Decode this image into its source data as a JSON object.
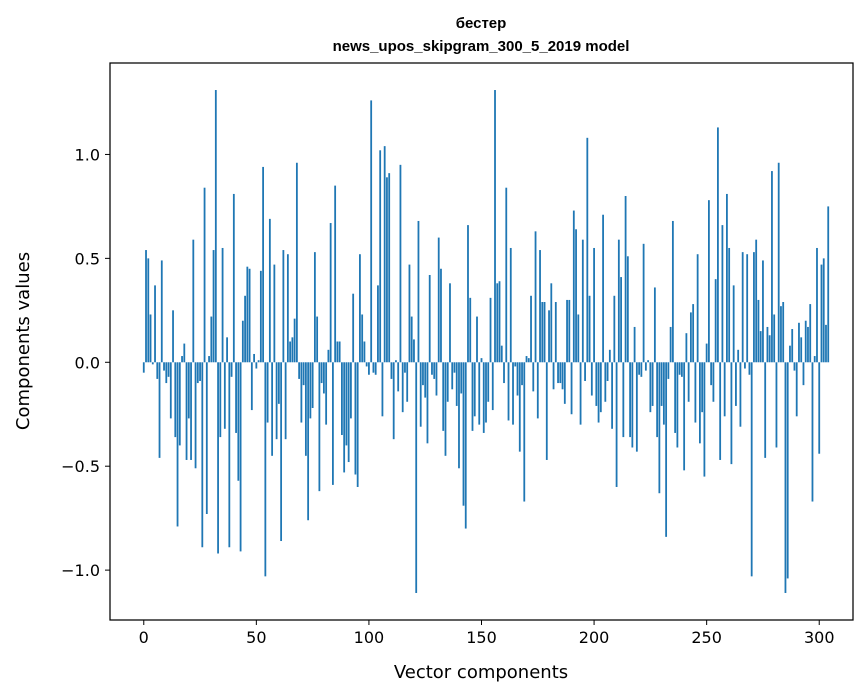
{
  "chart_data": {
    "type": "bar",
    "title": "бестер",
    "subtitle": "news_upos_skipgram_300_5_2019 model",
    "xlabel": "Vector components",
    "ylabel": "Components values",
    "xlim": [
      -15,
      315
    ],
    "ylim": [
      -1.24,
      1.44
    ],
    "xticks": [
      0,
      50,
      100,
      150,
      200,
      250,
      300
    ],
    "xtick_labels": [
      "0",
      "50",
      "100",
      "150",
      "200",
      "250",
      "300"
    ],
    "yticks": [
      -1.0,
      -0.5,
      0.0,
      0.5,
      1.0
    ],
    "ytick_labels": [
      "−1.0",
      "−0.5",
      "0.0",
      "0.5",
      "1.0"
    ],
    "grid": false,
    "bar_color": "#1f77b4",
    "values": [
      -0.05,
      0.54,
      0.5,
      0.23,
      -0.01,
      0.37,
      -0.08,
      -0.46,
      0.49,
      -0.04,
      -0.1,
      -0.07,
      -0.27,
      0.25,
      -0.36,
      -0.79,
      -0.4,
      0.03,
      0.09,
      -0.47,
      -0.27,
      -0.47,
      0.59,
      -0.51,
      -0.1,
      -0.09,
      -0.89,
      0.84,
      -0.73,
      0.03,
      0.22,
      0.54,
      1.31,
      -0.92,
      -0.36,
      0.55,
      -0.32,
      0.12,
      -0.89,
      -0.07,
      0.81,
      -0.34,
      -0.57,
      -0.91,
      0.2,
      0.32,
      0.46,
      0.45,
      -0.23,
      0.04,
      -0.03,
      0.01,
      0.44,
      0.94,
      -1.03,
      -0.29,
      0.69,
      -0.45,
      0.47,
      -0.37,
      -0.2,
      -0.86,
      0.54,
      -0.37,
      0.52,
      0.1,
      0.12,
      0.21,
      0.96,
      -0.08,
      -0.29,
      -0.11,
      -0.45,
      -0.76,
      -0.27,
      -0.22,
      0.53,
      0.22,
      -0.62,
      -0.1,
      -0.15,
      -0.3,
      0.06,
      0.67,
      -0.59,
      0.85,
      0.1,
      0.1,
      -0.35,
      -0.53,
      -0.4,
      -0.48,
      -0.27,
      0.33,
      -0.54,
      -0.6,
      0.52,
      0.23,
      0.1,
      -0.02,
      -0.06,
      1.26,
      -0.05,
      -0.06,
      0.37,
      1.02,
      -0.26,
      1.04,
      0.89,
      0.91,
      -0.08,
      -0.37,
      0.01,
      -0.14,
      0.95,
      -0.24,
      -0.05,
      -0.19,
      0.47,
      0.22,
      0.11,
      -1.11,
      0.68,
      -0.31,
      -0.11,
      -0.17,
      -0.39,
      0.42,
      -0.06,
      -0.08,
      -0.16,
      0.6,
      0.45,
      -0.33,
      -0.45,
      -0.19,
      0.38,
      -0.13,
      -0.05,
      -0.21,
      -0.51,
      -0.15,
      -0.69,
      -0.8,
      0.66,
      0.31,
      -0.33,
      -0.26,
      0.22,
      -0.3,
      0.02,
      -0.34,
      -0.29,
      -0.19,
      0.31,
      -0.23,
      1.31,
      0.38,
      0.39,
      0.08,
      -0.1,
      0.84,
      -0.28,
      0.55,
      -0.3,
      -0.02,
      -0.16,
      -0.43,
      -0.11,
      -0.67,
      0.03,
      0.02,
      0.32,
      -0.14,
      0.63,
      -0.27,
      0.54,
      0.29,
      0.29,
      -0.47,
      0.25,
      0.38,
      -0.13,
      0.29,
      -0.1,
      -0.1,
      -0.13,
      -0.2,
      0.3,
      0.3,
      -0.25,
      0.73,
      0.64,
      0.23,
      -0.3,
      0.59,
      -0.09,
      1.08,
      0.32,
      -0.16,
      0.55,
      -0.21,
      -0.29,
      -0.24,
      0.71,
      -0.19,
      -0.09,
      0.06,
      -0.32,
      0.32,
      -0.6,
      0.59,
      0.41,
      -0.36,
      0.8,
      0.51,
      -0.36,
      -0.41,
      0.17,
      -0.43,
      -0.06,
      -0.07,
      0.57,
      -0.04,
      0.01,
      -0.24,
      -0.21,
      0.36,
      -0.36,
      -0.63,
      -0.21,
      -0.3,
      -0.84,
      -0.08,
      0.17,
      0.68,
      -0.34,
      -0.41,
      -0.06,
      -0.07,
      -0.52,
      0.14,
      -0.19,
      0.24,
      0.28,
      -0.29,
      0.52,
      -0.39,
      -0.24,
      -0.55,
      0.09,
      0.78,
      -0.11,
      -0.19,
      0.4,
      1.13,
      -0.47,
      0.66,
      -0.26,
      0.81,
      0.55,
      -0.49,
      0.37,
      -0.21,
      0.06,
      -0.31,
      0.53,
      -0.03,
      0.52,
      -0.06,
      -1.03,
      0.53,
      0.59,
      0.3,
      0.15,
      0.49,
      -0.46,
      0.17,
      0.13,
      0.92,
      0.23,
      -0.41,
      0.96,
      0.27,
      0.29,
      -1.11,
      -1.04,
      0.08,
      0.16,
      -0.04,
      -0.26,
      0.19,
      0.12,
      -0.11,
      0.2,
      0.17,
      0.28,
      -0.67,
      0.03,
      0.55,
      -0.44,
      0.47,
      0.5,
      0.18,
      0.75
    ]
  }
}
